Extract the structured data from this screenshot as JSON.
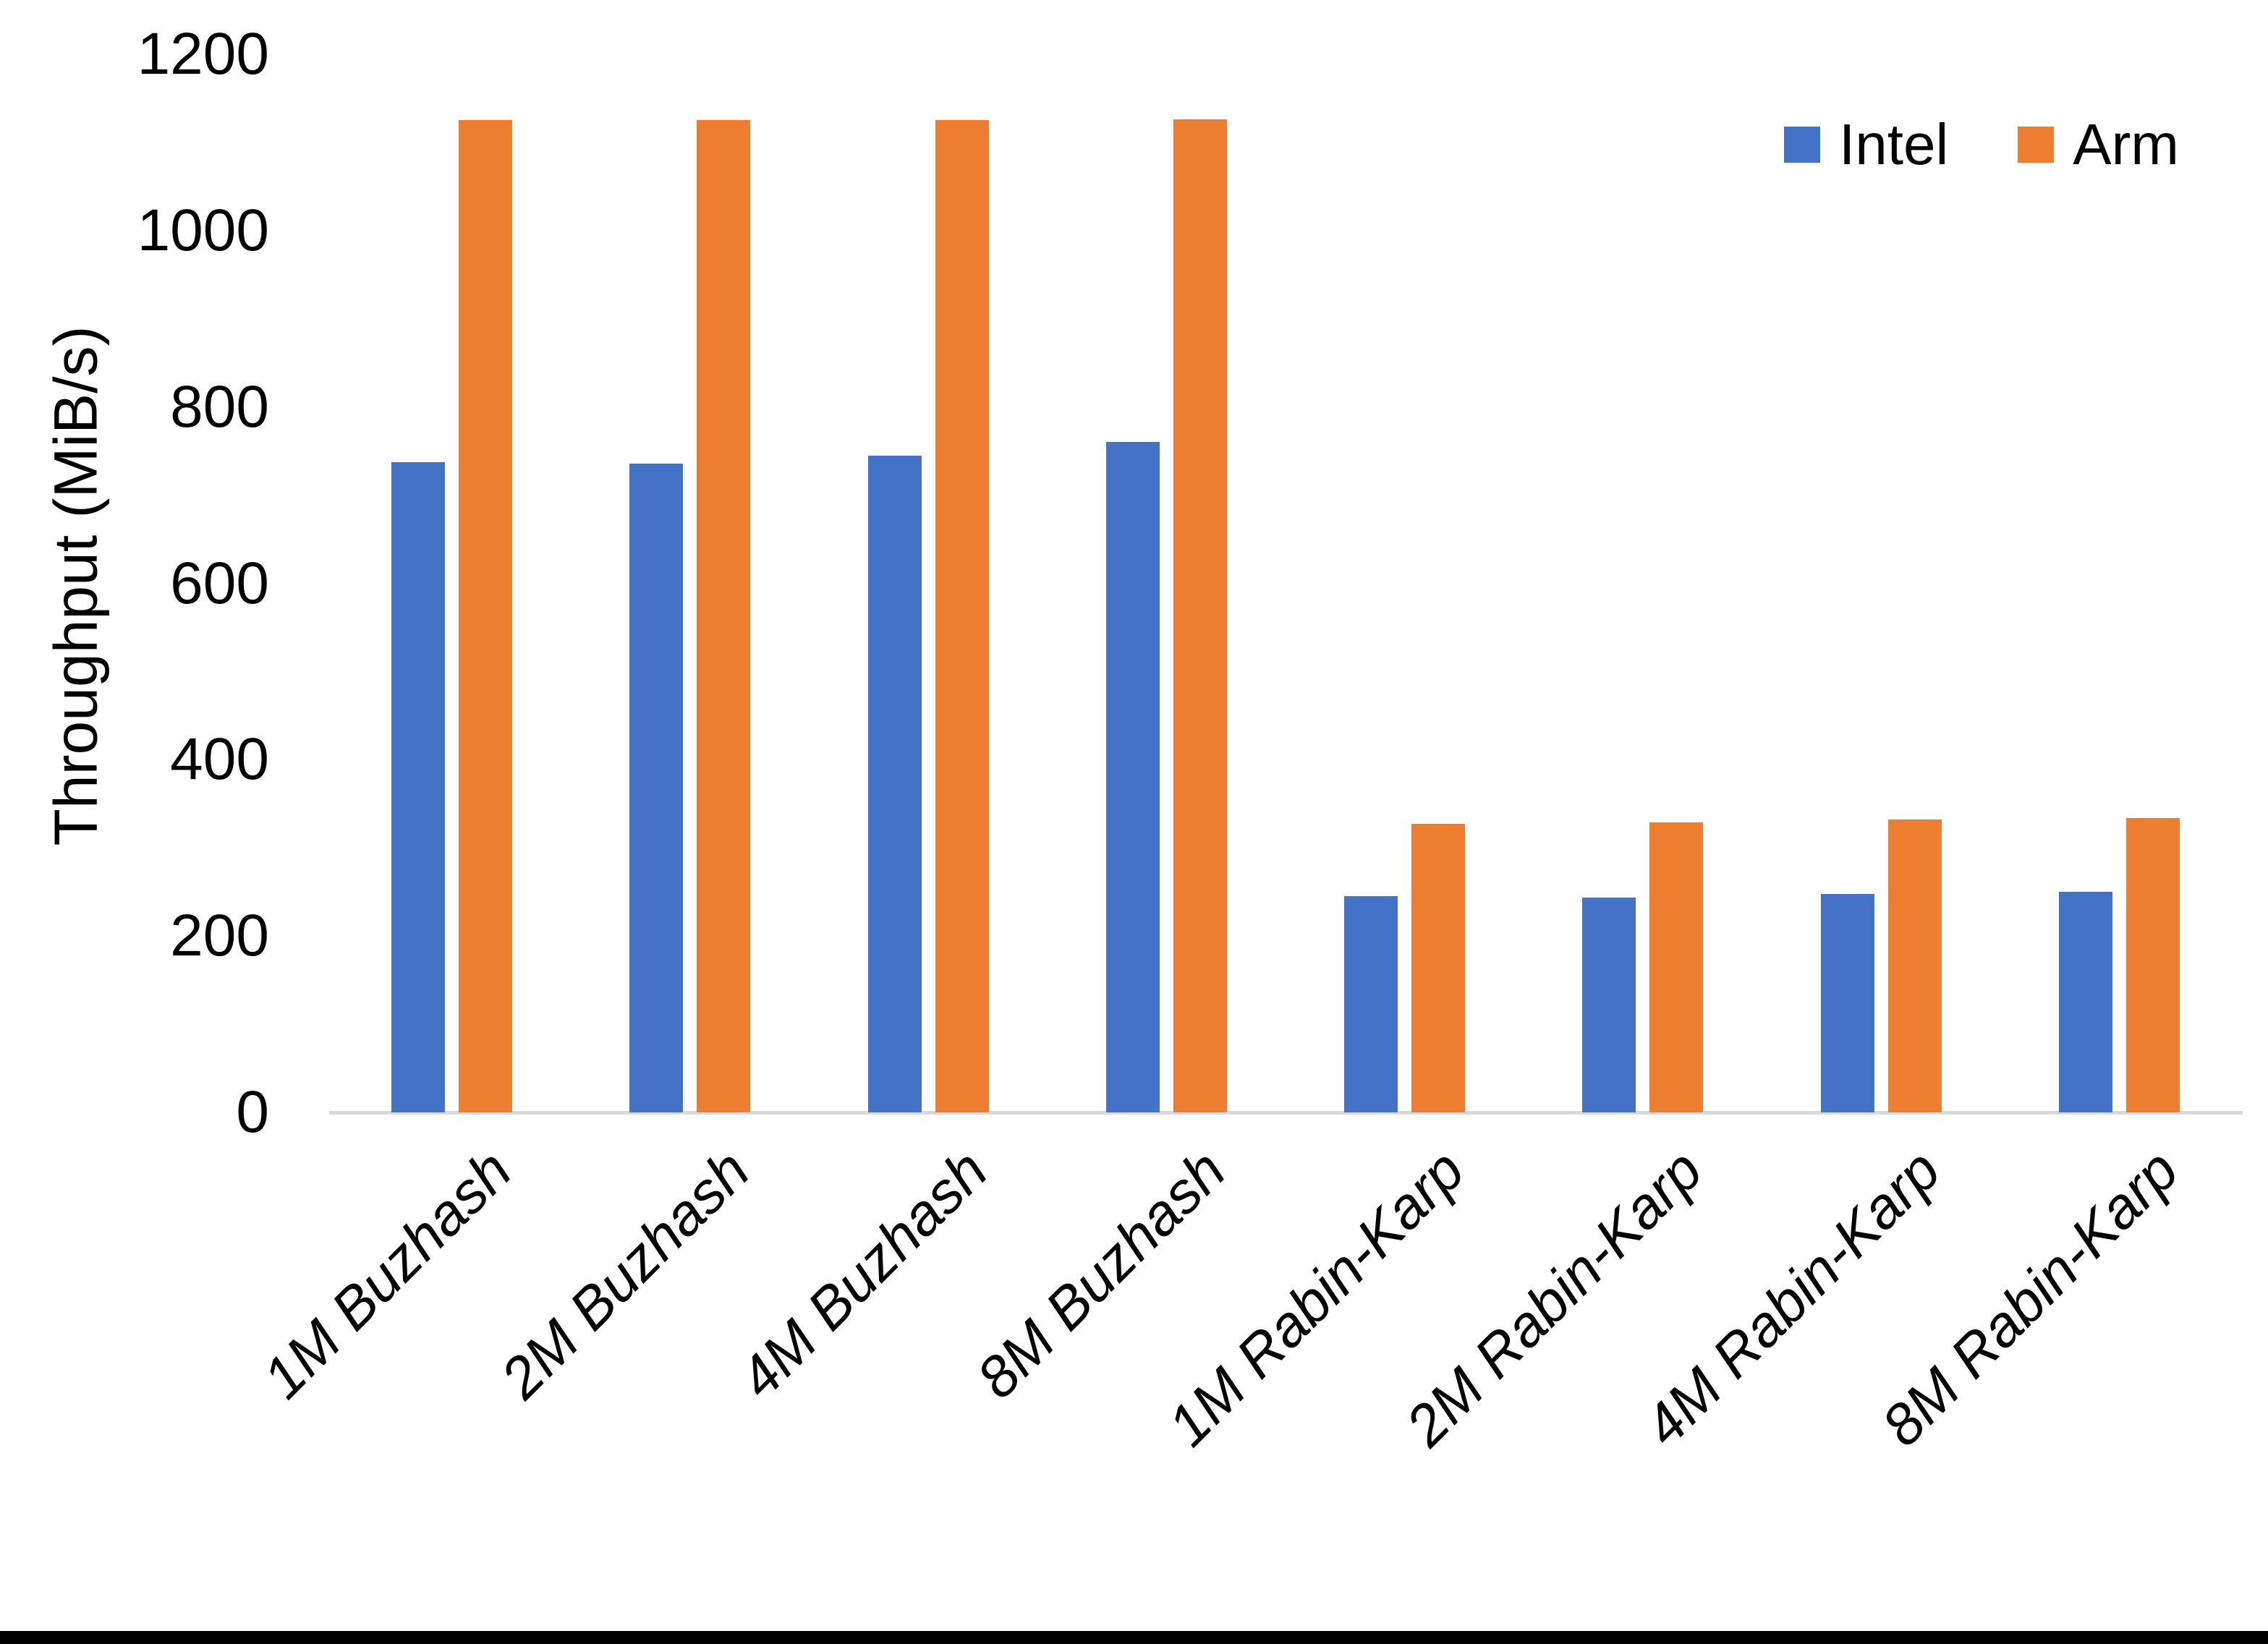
{
  "chart_data": {
    "type": "bar",
    "title": "",
    "categories": [
      "1M Buzhash",
      "2M Buzhash",
      "4M Buzhash",
      "8M Buzhash",
      "1M Rabin-Karp",
      "2M Rabin-Karp",
      "4M Rabin-Karp",
      "8M Rabin-Karp"
    ],
    "series": [
      {
        "name": "Intel",
        "values": [
          737,
          736,
          745,
          760,
          245,
          244,
          248,
          250
        ]
      },
      {
        "name": "Arm",
        "values": [
          1125,
          1125,
          1125,
          1126,
          327,
          329,
          332,
          334
        ]
      }
    ],
    "colors": [
      "#4472C4",
      "#ED7D31"
    ],
    "xlabel": "",
    "ylabel": "Throughput (MiB/s)",
    "ylim": [
      0,
      1200
    ],
    "yticks": [
      0,
      200,
      400,
      600,
      800,
      1000,
      1200
    ],
    "grid": false,
    "legend_position": "top-right",
    "axis_line_color": "#D9D9D9",
    "text_color": "#000000",
    "background": "#FFFFFF",
    "bottom_border_color": "#000000"
  }
}
